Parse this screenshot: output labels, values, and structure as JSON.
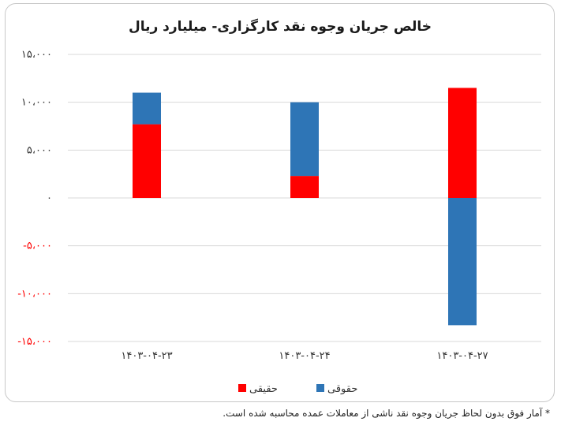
{
  "chart_data": {
    "type": "bar",
    "stacked": true,
    "title": "خالص جریان وجوه نقد کارگزاری- میلیارد ریال",
    "categories": [
      "۱۴۰۳-۰۴-۲۳",
      "۱۴۰۳-۰۴-۲۴",
      "۱۴۰۳-۰۴-۲۷"
    ],
    "series": [
      {
        "name": "حقیقی",
        "color": "#ff0000",
        "values": [
          7700,
          2300,
          11500
        ]
      },
      {
        "name": "حقوقی",
        "color": "#2e75b6",
        "values": [
          3300,
          7700,
          -13300
        ]
      }
    ],
    "ylim": [
      -15000,
      15000
    ],
    "yticks": [
      15000,
      10000,
      5000,
      0,
      -5000,
      -10000,
      -15000
    ],
    "ytick_labels": [
      "۱۵،۰۰۰",
      "۱۰،۰۰۰",
      "۵،۰۰۰",
      "۰",
      "-۵،۰۰۰",
      "-۱۰،۰۰۰",
      "-۱۵،۰۰۰"
    ],
    "grid": true,
    "legend_position": "bottom",
    "positive_tick_color": "#333333",
    "negative_tick_color": "#ff0000"
  },
  "footnote": "* آمار فوق بدون لحاظ جریان وجوه نقد ناشی از معاملات عمده محاسبه شده است."
}
